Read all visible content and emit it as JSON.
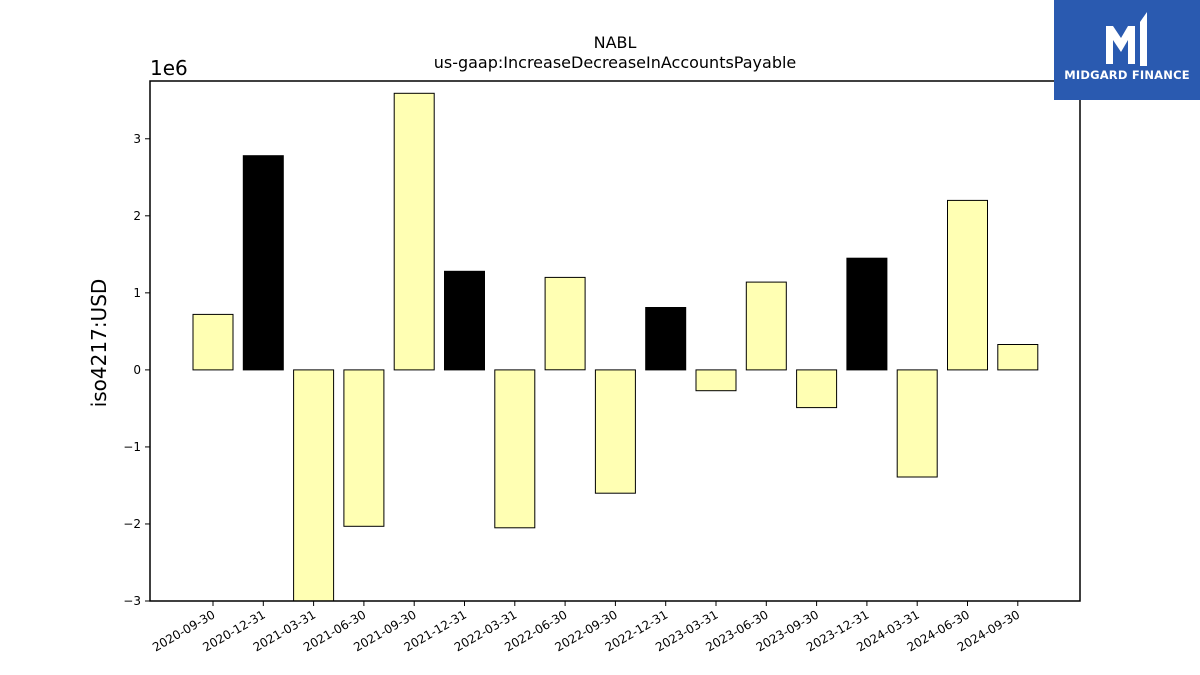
{
  "chart_data": {
    "type": "bar",
    "title": "NABL",
    "subtitle": "us-gaap:IncreaseDecreaseInAccountsPayable",
    "ylabel": "iso4217:USD",
    "xlabel": "",
    "offset_label": "1e6",
    "ylim": [
      -3000000,
      3750000
    ],
    "yticks": [
      -3,
      -2,
      -1,
      0,
      1,
      2,
      3
    ],
    "ytick_labels": [
      "−3",
      "−2",
      "−1",
      "0",
      "1",
      "2",
      "3"
    ],
    "grid": false,
    "categories": [
      "2020-09-30",
      "2020-12-31",
      "2021-03-31",
      "2021-06-30",
      "2021-09-30",
      "2021-12-31",
      "2022-03-31",
      "2022-06-30",
      "2022-09-30",
      "2022-12-31",
      "2023-03-31",
      "2023-06-30",
      "2023-09-30",
      "2023-12-31",
      "2024-03-31",
      "2024-06-30",
      "2024-09-30"
    ],
    "values": [
      720000,
      2780000,
      -3000000,
      -2030000,
      3590000,
      1280000,
      -2050000,
      1200000,
      -1600000,
      810000,
      -270000,
      1140000,
      -490000,
      1450000,
      -1390000,
      2200000,
      330000
    ],
    "bar_colors": [
      "#ffffb3",
      "#000000",
      "#ffffb3",
      "#ffffb3",
      "#ffffb3",
      "#000000",
      "#ffffb3",
      "#ffffb3",
      "#ffffb3",
      "#000000",
      "#ffffb3",
      "#ffffb3",
      "#ffffb3",
      "#000000",
      "#ffffb3",
      "#ffffb3",
      "#ffffb3"
    ]
  },
  "logo": {
    "text": "MIDGARD FINANCE",
    "background": "#2a5ab0",
    "icon": "midgard-logo-icon"
  }
}
